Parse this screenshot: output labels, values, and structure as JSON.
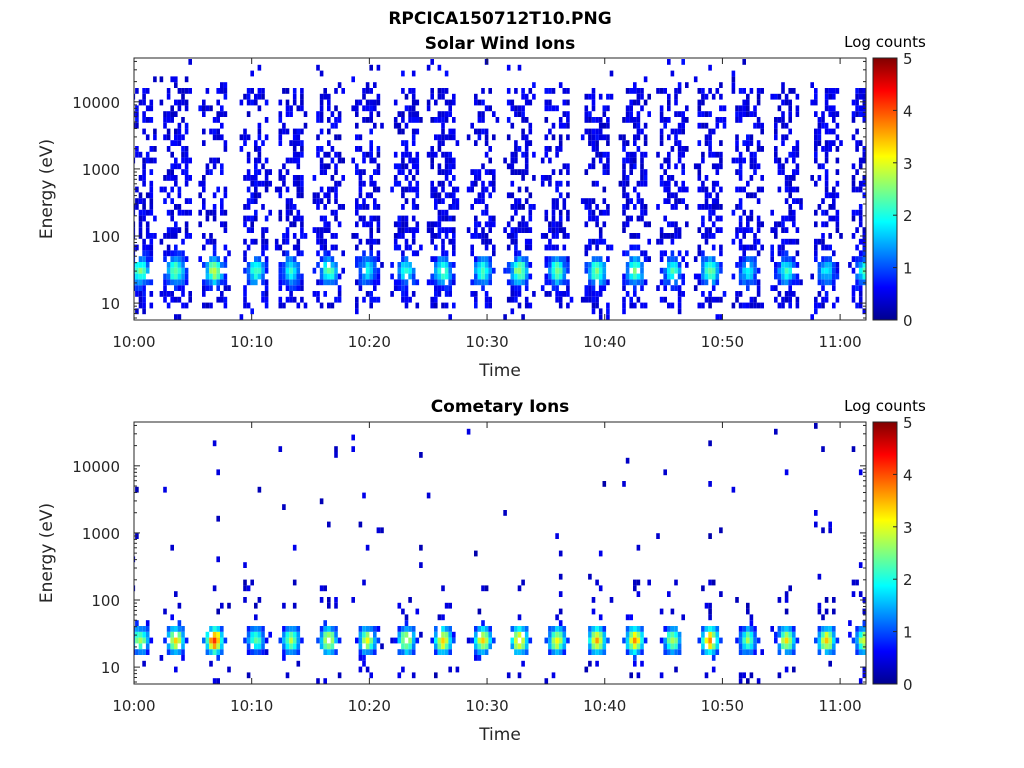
{
  "figure": {
    "title": "RPCICA150712T10.PNG"
  },
  "chart_data": [
    {
      "type": "heatmap",
      "title": "Solar Wind Ions",
      "xlabel": "Time",
      "ylabel": "Energy (eV)",
      "x_range": [
        "10:00",
        "11:04"
      ],
      "ylim": [
        5.6,
        45000
      ],
      "y_scale": "log",
      "x_tick_labels": [
        "10:00",
        "10:10",
        "10:20",
        "10:30",
        "10:40",
        "10:50",
        "11:00"
      ],
      "y_tick_values": [
        10,
        100,
        1000,
        10000
      ],
      "y_tick_labels": [
        "10",
        "100",
        "1000",
        "10000"
      ],
      "colorbar": {
        "title": "Log counts",
        "range": [
          0,
          5
        ],
        "tick_labels": [
          "0",
          "1",
          "2",
          "3",
          "4",
          "5"
        ],
        "colormap": "jet"
      },
      "sweeps": [
        {
          "time_min": 0.4,
          "peak_log_counts": 2.0
        },
        {
          "time_min": 3.4,
          "peak_log_counts": 2.0
        },
        {
          "time_min": 6.7,
          "peak_log_counts": 2.4
        },
        {
          "time_min": 10.2,
          "peak_log_counts": 1.8
        },
        {
          "time_min": 13.2,
          "peak_log_counts": 1.6
        },
        {
          "time_min": 16.4,
          "peak_log_counts": 1.9
        },
        {
          "time_min": 19.7,
          "peak_log_counts": 1.4
        },
        {
          "time_min": 23.0,
          "peak_log_counts": 1.6
        },
        {
          "time_min": 26.1,
          "peak_log_counts": 1.9
        },
        {
          "time_min": 29.5,
          "peak_log_counts": 1.8
        },
        {
          "time_min": 32.6,
          "peak_log_counts": 2.2
        },
        {
          "time_min": 35.8,
          "peak_log_counts": 2.0
        },
        {
          "time_min": 39.2,
          "peak_log_counts": 2.1
        },
        {
          "time_min": 42.4,
          "peak_log_counts": 2.0
        },
        {
          "time_min": 45.6,
          "peak_log_counts": 1.7
        },
        {
          "time_min": 48.8,
          "peak_log_counts": 2.0
        },
        {
          "time_min": 52.0,
          "peak_log_counts": 1.4
        },
        {
          "time_min": 55.3,
          "peak_log_counts": 1.6
        },
        {
          "time_min": 58.7,
          "peak_log_counts": 1.3
        },
        {
          "time_min": 61.9,
          "peak_log_counts": 1.6
        }
      ],
      "dominant_energy_ev": 30,
      "background_log_counts": 0.3
    },
    {
      "type": "heatmap",
      "title": "Cometary Ions",
      "xlabel": "Time",
      "ylabel": "Energy (eV)",
      "x_range": [
        "10:00",
        "11:04"
      ],
      "ylim": [
        5.6,
        45000
      ],
      "y_scale": "log",
      "x_tick_labels": [
        "10:00",
        "10:10",
        "10:20",
        "10:30",
        "10:40",
        "10:50",
        "11:00"
      ],
      "y_tick_values": [
        10,
        100,
        1000,
        10000
      ],
      "y_tick_labels": [
        "10",
        "100",
        "1000",
        "10000"
      ],
      "colorbar": {
        "title": "Log counts",
        "range": [
          0,
          5
        ],
        "tick_labels": [
          "0",
          "1",
          "2",
          "3",
          "4",
          "5"
        ],
        "colormap": "jet"
      },
      "sweeps": [
        {
          "time_min": 0.4,
          "peak_log_counts": 2.4
        },
        {
          "time_min": 3.4,
          "peak_log_counts": 3.0
        },
        {
          "time_min": 6.7,
          "peak_log_counts": 3.8
        },
        {
          "time_min": 10.2,
          "peak_log_counts": 2.0
        },
        {
          "time_min": 13.2,
          "peak_log_counts": 2.3
        },
        {
          "time_min": 16.4,
          "peak_log_counts": 2.8
        },
        {
          "time_min": 19.7,
          "peak_log_counts": 2.6
        },
        {
          "time_min": 23.0,
          "peak_log_counts": 2.7
        },
        {
          "time_min": 26.1,
          "peak_log_counts": 3.0
        },
        {
          "time_min": 29.5,
          "peak_log_counts": 2.9
        },
        {
          "time_min": 32.6,
          "peak_log_counts": 3.2
        },
        {
          "time_min": 35.8,
          "peak_log_counts": 2.8
        },
        {
          "time_min": 39.2,
          "peak_log_counts": 3.2
        },
        {
          "time_min": 42.4,
          "peak_log_counts": 3.3
        },
        {
          "time_min": 45.6,
          "peak_log_counts": 2.4
        },
        {
          "time_min": 48.8,
          "peak_log_counts": 3.4
        },
        {
          "time_min": 52.0,
          "peak_log_counts": 2.2
        },
        {
          "time_min": 55.3,
          "peak_log_counts": 2.8
        },
        {
          "time_min": 58.7,
          "peak_log_counts": 3.0
        },
        {
          "time_min": 61.9,
          "peak_log_counts": 2.6
        }
      ],
      "dominant_energy_ev": 25,
      "background_log_counts": 0.2
    }
  ]
}
